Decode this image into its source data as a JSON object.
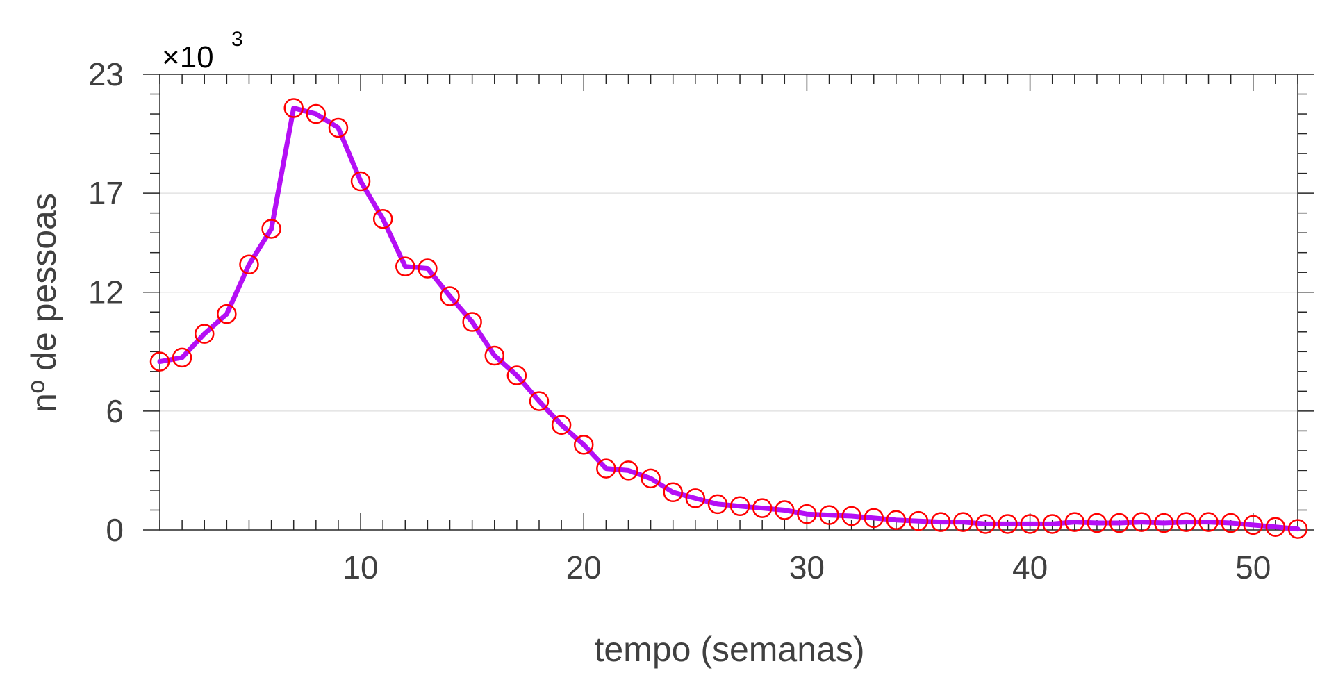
{
  "chart_data": {
    "type": "line",
    "title": "",
    "xlabel": "tempo (semanas)",
    "ylabel": "nº de pessoas",
    "y_multiplier": {
      "prefix": "×10",
      "exponent": "3"
    },
    "xlim": [
      1,
      52
    ],
    "ylim": [
      0,
      23
    ],
    "xticks": [
      10,
      20,
      30,
      40,
      50
    ],
    "yticks": [
      0,
      6,
      12,
      17,
      23
    ],
    "ygrid": [
      6,
      12,
      17
    ],
    "grid": "horizontal",
    "series": [
      {
        "style": "line",
        "color": "#b40ff5",
        "x": [
          1,
          2,
          3,
          4,
          5,
          6,
          7,
          8,
          9,
          10,
          11,
          12,
          13,
          14,
          15,
          16,
          17,
          18,
          19,
          20,
          21,
          22,
          23,
          24,
          25,
          26,
          27,
          28,
          29,
          30,
          31,
          32,
          33,
          34,
          35,
          36,
          37,
          38,
          39,
          40,
          41,
          42,
          43,
          44,
          45,
          46,
          47,
          48,
          49,
          50,
          51,
          52
        ],
        "y": [
          8.5,
          8.7,
          9.9,
          10.9,
          13.4,
          15.2,
          21.3,
          21.0,
          20.3,
          17.6,
          15.7,
          13.3,
          13.2,
          11.8,
          10.5,
          8.8,
          7.8,
          6.5,
          5.3,
          4.3,
          3.1,
          3.0,
          2.6,
          1.9,
          1.6,
          1.3,
          1.2,
          1.1,
          1.0,
          0.8,
          0.75,
          0.7,
          0.6,
          0.5,
          0.45,
          0.4,
          0.4,
          0.3,
          0.3,
          0.3,
          0.3,
          0.4,
          0.35,
          0.35,
          0.4,
          0.35,
          0.4,
          0.4,
          0.35,
          0.25,
          0.15,
          0.05
        ]
      },
      {
        "style": "markers",
        "marker": "circle",
        "color": "#ff0000",
        "x": [
          1,
          2,
          3,
          4,
          5,
          6,
          7,
          8,
          9,
          10,
          11,
          12,
          13,
          14,
          15,
          16,
          17,
          18,
          19,
          20,
          21,
          22,
          23,
          24,
          25,
          26,
          27,
          28,
          29,
          30,
          31,
          32,
          33,
          34,
          35,
          36,
          37,
          38,
          39,
          40,
          41,
          42,
          43,
          44,
          45,
          46,
          47,
          48,
          49,
          50,
          51,
          52
        ],
        "y": [
          8.5,
          8.7,
          9.9,
          10.9,
          13.4,
          15.2,
          21.3,
          21.0,
          20.3,
          17.6,
          15.7,
          13.3,
          13.2,
          11.8,
          10.5,
          8.8,
          7.8,
          6.5,
          5.3,
          4.3,
          3.1,
          3.0,
          2.6,
          1.9,
          1.6,
          1.3,
          1.2,
          1.1,
          1.0,
          0.8,
          0.75,
          0.7,
          0.6,
          0.5,
          0.45,
          0.4,
          0.4,
          0.3,
          0.3,
          0.3,
          0.3,
          0.4,
          0.35,
          0.35,
          0.4,
          0.35,
          0.4,
          0.4,
          0.35,
          0.25,
          0.15,
          0.05
        ]
      }
    ]
  }
}
